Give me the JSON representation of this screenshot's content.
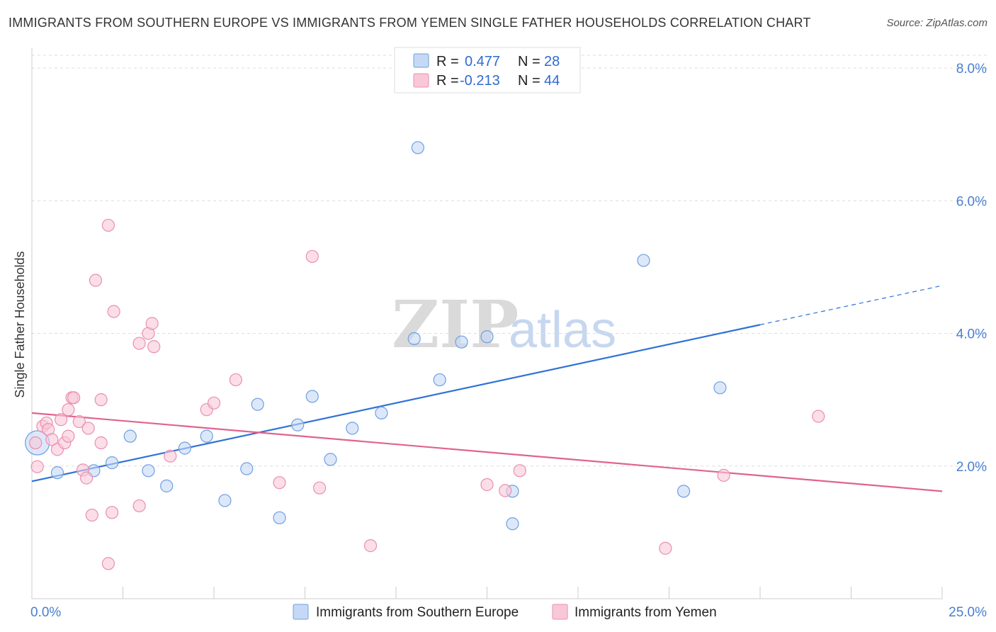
{
  "title": "IMMIGRANTS FROM SOUTHERN EUROPE VS IMMIGRANTS FROM YEMEN SINGLE FATHER HOUSEHOLDS CORRELATION CHART",
  "source": "Source: ZipAtlas.com",
  "watermark": {
    "zip": "ZIP",
    "atlas": "atlas"
  },
  "colors": {
    "blue_fill": "#c5d9f5",
    "blue_stroke": "#6f9fe0",
    "blue_line": "#2f72d6",
    "pink_fill": "#f8c8d8",
    "pink_stroke": "#ea8fb0",
    "pink_line": "#e0638f",
    "grid": "#dddddd",
    "tick_text": "#4a7fd0"
  },
  "legend_top": {
    "rows": [
      {
        "r_label": "R =",
        "r_value": "0.477",
        "n_label": "N =",
        "n_value": "28"
      },
      {
        "r_label": "R =",
        "r_value": "-0.213",
        "n_label": "N =",
        "n_value": "44"
      }
    ]
  },
  "legend_bottom": {
    "items": [
      "Immigrants from Southern Europe",
      "Immigrants from Yemen"
    ]
  },
  "chart_data": {
    "type": "scatter",
    "title": "IMMIGRANTS FROM SOUTHERN EUROPE VS IMMIGRANTS FROM YEMEN SINGLE FATHER HOUSEHOLDS CORRELATION CHART",
    "xlabel": "",
    "ylabel": "Single Father Households",
    "xlim": [
      0,
      25
    ],
    "ylim": [
      0,
      8.3
    ],
    "x_tick_labels": [
      "0.0%",
      "25.0%"
    ],
    "y_ticks": [
      2,
      4,
      6,
      8
    ],
    "y_tick_labels": [
      "2.0%",
      "4.0%",
      "6.0%",
      "8.0%"
    ],
    "series": [
      {
        "name": "Immigrants from Southern Europe",
        "color": "blue",
        "r": 0.477,
        "n": 28,
        "points": [
          [
            0.15,
            2.35,
            "large"
          ],
          [
            0.7,
            1.9
          ],
          [
            1.7,
            1.93
          ],
          [
            2.2,
            2.05
          ],
          [
            2.7,
            2.45
          ],
          [
            3.2,
            1.93
          ],
          [
            3.7,
            1.7
          ],
          [
            4.2,
            2.27
          ],
          [
            4.8,
            2.45
          ],
          [
            5.3,
            1.48
          ],
          [
            5.9,
            1.96
          ],
          [
            6.2,
            2.93
          ],
          [
            6.8,
            1.22
          ],
          [
            7.3,
            2.62
          ],
          [
            7.7,
            3.05
          ],
          [
            8.2,
            2.1
          ],
          [
            8.8,
            2.57
          ],
          [
            9.6,
            2.8
          ],
          [
            10.6,
            6.8
          ],
          [
            11.2,
            3.3
          ],
          [
            10.5,
            3.92
          ],
          [
            11.8,
            3.87
          ],
          [
            12.5,
            3.95
          ],
          [
            13.2,
            1.13
          ],
          [
            13.2,
            1.62
          ],
          [
            16.8,
            5.1
          ],
          [
            17.9,
            1.62
          ],
          [
            18.9,
            3.18
          ]
        ],
        "trend": {
          "x0": 0,
          "y0": 1.77,
          "x1": 20,
          "y1": 4.13,
          "dashed_to_x": 25,
          "dashed_to_y": 4.72
        }
      },
      {
        "name": "Immigrants from Yemen",
        "color": "pink",
        "r": -0.213,
        "n": 44,
        "points": [
          [
            0.1,
            2.35
          ],
          [
            0.15,
            1.99
          ],
          [
            0.3,
            2.6
          ],
          [
            0.4,
            2.65
          ],
          [
            0.45,
            2.55
          ],
          [
            0.55,
            2.4
          ],
          [
            0.7,
            2.25
          ],
          [
            0.8,
            2.7
          ],
          [
            0.9,
            2.35
          ],
          [
            1.0,
            2.45
          ],
          [
            1.0,
            2.85
          ],
          [
            1.1,
            3.03
          ],
          [
            1.15,
            3.03
          ],
          [
            1.3,
            2.67
          ],
          [
            1.4,
            1.94
          ],
          [
            1.5,
            1.82
          ],
          [
            1.55,
            2.57
          ],
          [
            1.65,
            1.26
          ],
          [
            1.75,
            4.8
          ],
          [
            1.9,
            2.35
          ],
          [
            1.9,
            3.0
          ],
          [
            2.1,
            0.53
          ],
          [
            2.1,
            5.63
          ],
          [
            2.2,
            1.3
          ],
          [
            2.25,
            4.33
          ],
          [
            2.95,
            1.4
          ],
          [
            2.95,
            3.85
          ],
          [
            3.2,
            4.0
          ],
          [
            3.3,
            4.15
          ],
          [
            3.35,
            3.8
          ],
          [
            3.8,
            2.15
          ],
          [
            4.8,
            2.85
          ],
          [
            5.0,
            2.95
          ],
          [
            5.6,
            3.3
          ],
          [
            6.8,
            1.75
          ],
          [
            7.7,
            5.16
          ],
          [
            7.9,
            1.67
          ],
          [
            9.3,
            0.8
          ],
          [
            12.5,
            1.72
          ],
          [
            13.0,
            1.63
          ],
          [
            13.4,
            1.93
          ],
          [
            17.4,
            0.76
          ],
          [
            19.0,
            1.86
          ],
          [
            21.6,
            2.75
          ]
        ],
        "trend": {
          "x0": 0,
          "y0": 2.8,
          "x1": 25,
          "y1": 1.62
        }
      }
    ]
  }
}
